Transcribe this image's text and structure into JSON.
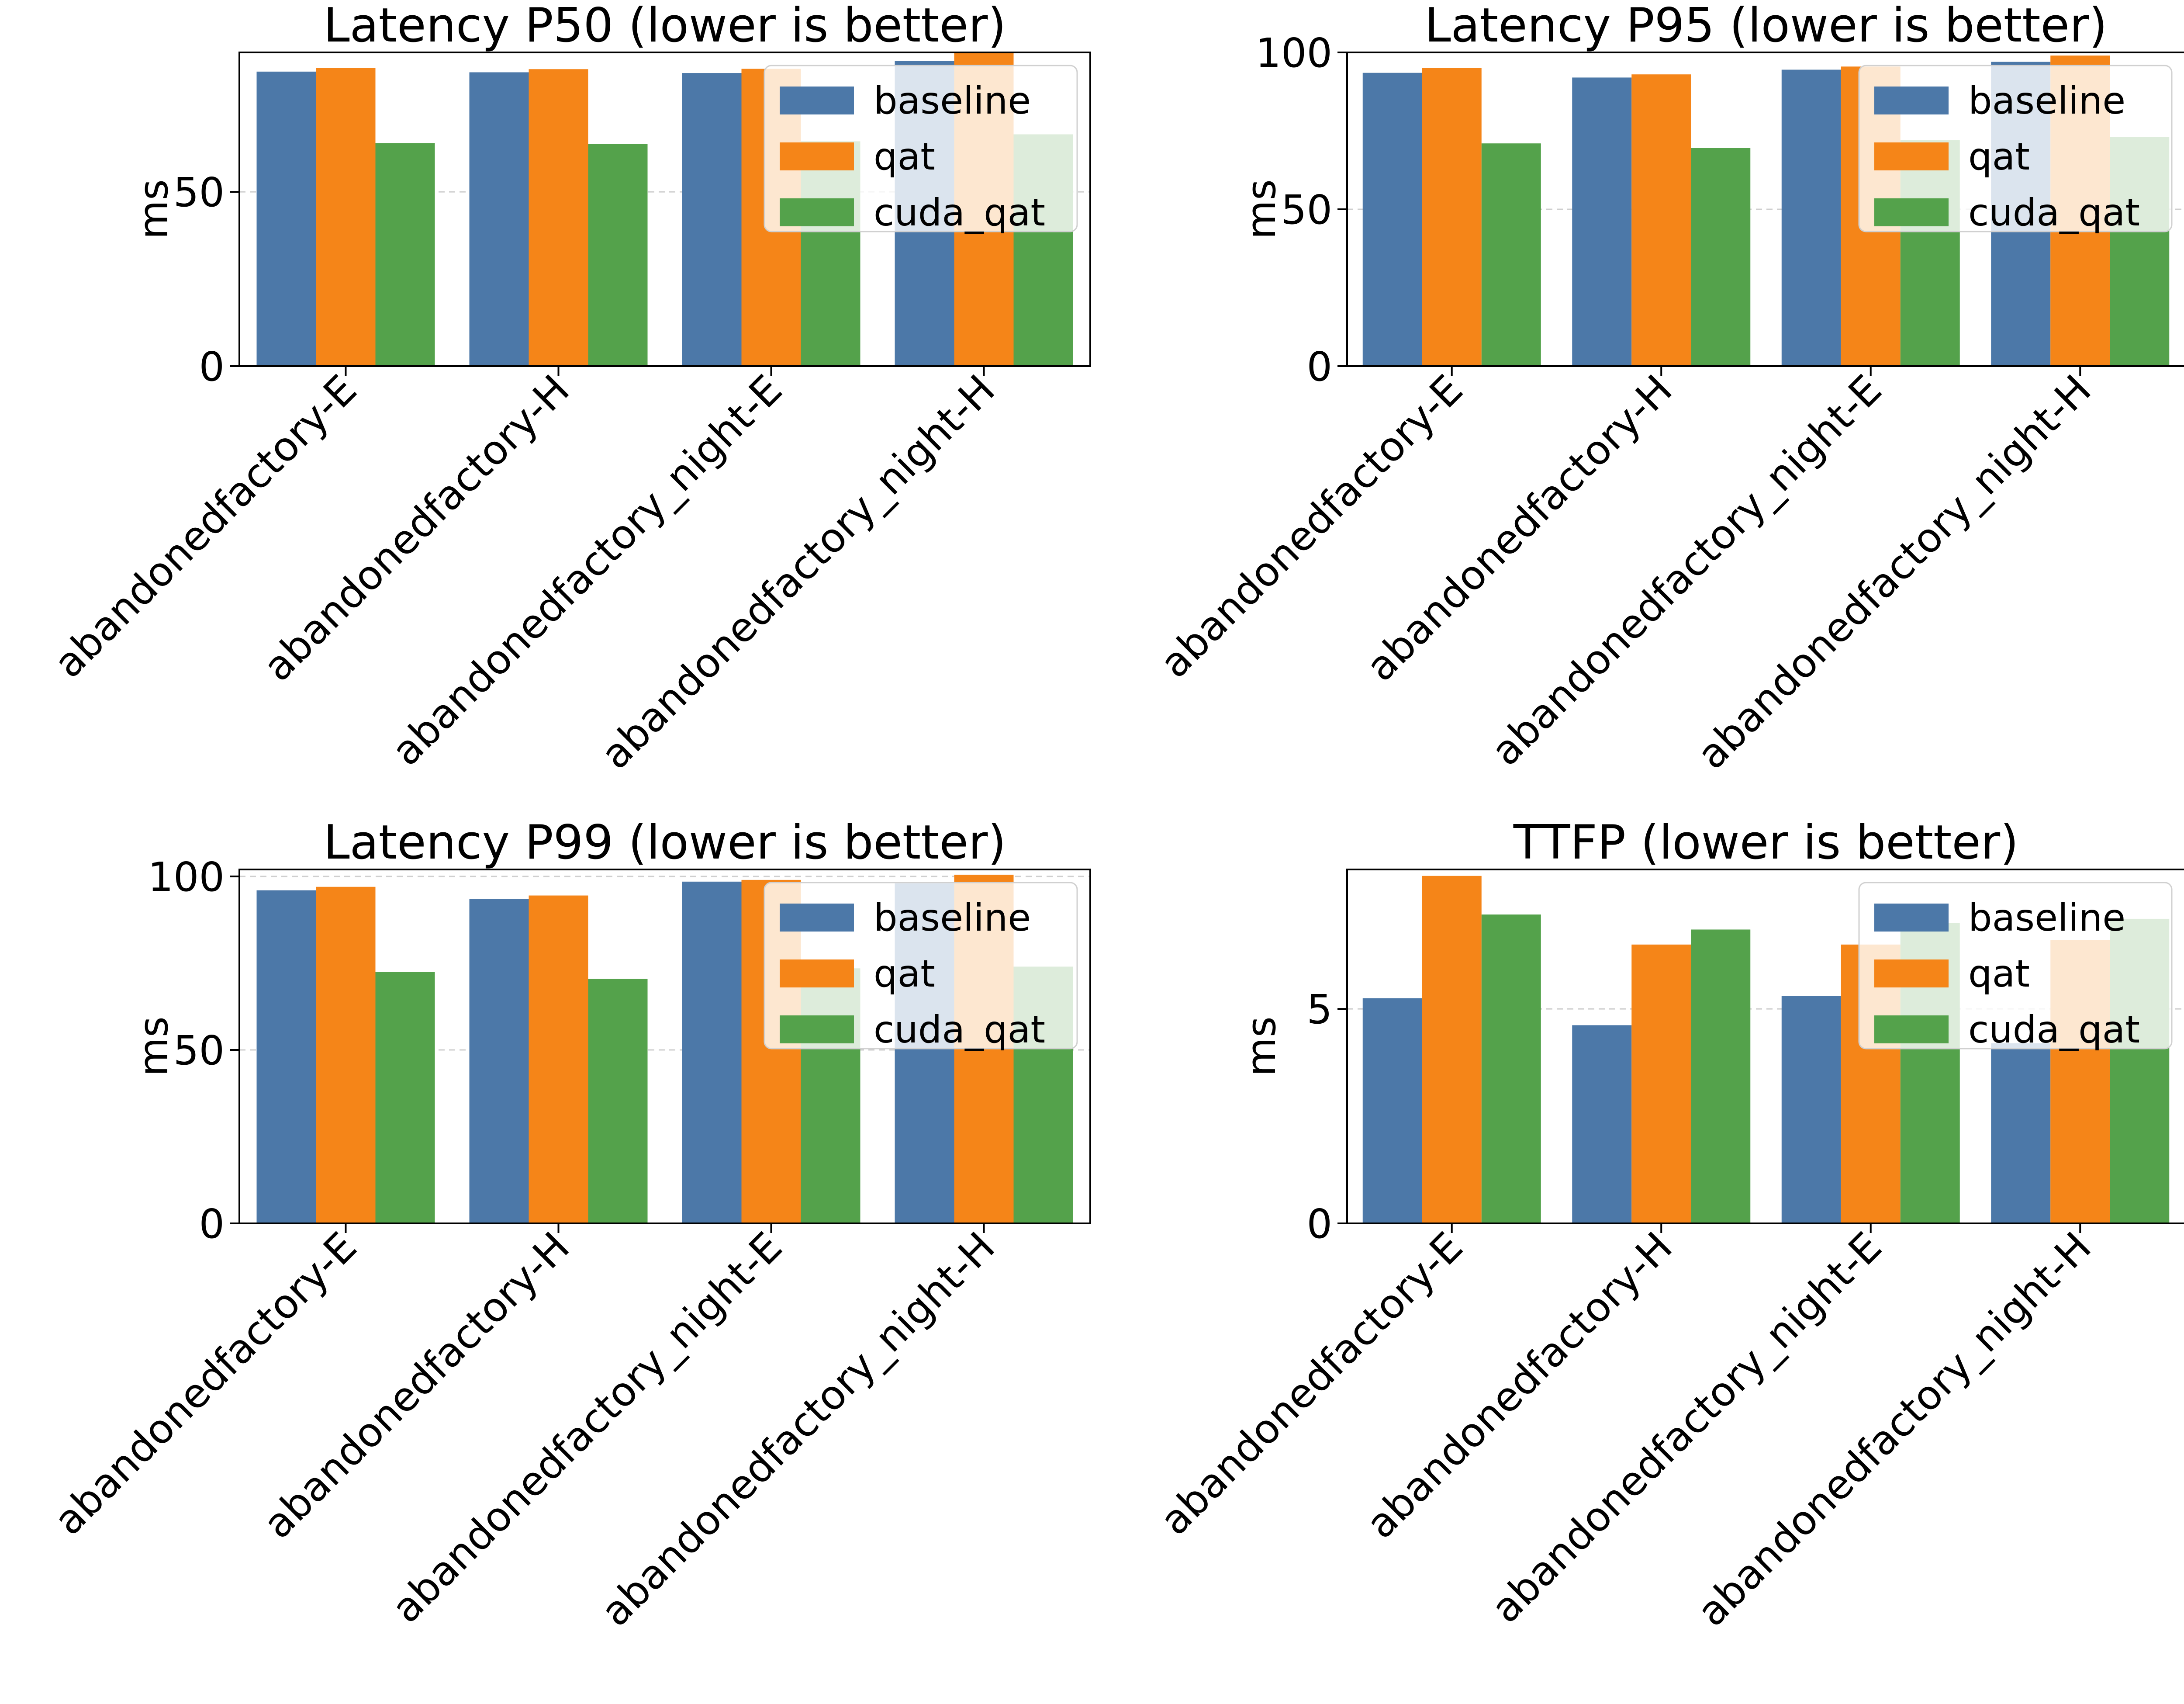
{
  "figure": {
    "colors": {
      "baseline": "#4c78a8",
      "qat": "#f58518",
      "cuda_qat": "#54a24b"
    }
  },
  "chart_data": [
    {
      "type": "bar",
      "title": "Latency P50 (lower is better)",
      "xlabel": "",
      "ylabel": "ms",
      "categories": [
        "abandonedfactory-E",
        "abandonedfactory-H",
        "abandonedfactory_night-E",
        "abandonedfactory_night-H"
      ],
      "series": [
        {
          "name": "baseline",
          "values": [
            84.5,
            84.3,
            84.1,
            87.5
          ]
        },
        {
          "name": "qat",
          "values": [
            85.5,
            85.2,
            85.3,
            90.0
          ]
        },
        {
          "name": "cuda_qat",
          "values": [
            64.0,
            63.8,
            64.5,
            66.5
          ]
        }
      ],
      "ylim": [
        0,
        90
      ],
      "yticks": [
        0,
        50
      ],
      "grid": "y-dashed",
      "legend": "upper right"
    },
    {
      "type": "bar",
      "title": "Latency P95 (lower is better)",
      "xlabel": "",
      "ylabel": "ms",
      "categories": [
        "abandonedfactory-E",
        "abandonedfactory-H",
        "abandonedfactory_night-E",
        "abandonedfactory_night-H"
      ],
      "series": [
        {
          "name": "baseline",
          "values": [
            93.5,
            92.0,
            94.5,
            97.0
          ]
        },
        {
          "name": "qat",
          "values": [
            95.0,
            93.0,
            95.5,
            99.0
          ]
        },
        {
          "name": "cuda_qat",
          "values": [
            71.0,
            69.5,
            72.0,
            73.0
          ]
        }
      ],
      "ylim": [
        0,
        100
      ],
      "yticks": [
        0,
        50,
        100
      ],
      "grid": "y-dashed",
      "legend": "upper right"
    },
    {
      "type": "bar",
      "title": "Latency P99 (lower is better)",
      "xlabel": "",
      "ylabel": "ms",
      "categories": [
        "abandonedfactory-E",
        "abandonedfactory-H",
        "abandonedfactory_night-E",
        "abandonedfactory_night-H"
      ],
      "series": [
        {
          "name": "baseline",
          "values": [
            96.0,
            93.5,
            98.5,
            98.0
          ]
        },
        {
          "name": "qat",
          "values": [
            97.0,
            94.5,
            99.0,
            100.5
          ]
        },
        {
          "name": "cuda_qat",
          "values": [
            72.5,
            70.5,
            73.5,
            74.0
          ]
        }
      ],
      "ylim": [
        0,
        102
      ],
      "yticks": [
        0,
        50,
        100
      ],
      "grid": "y-dashed",
      "legend": "upper right"
    },
    {
      "type": "bar",
      "title": "TTFP (lower is better)",
      "xlabel": "",
      "ylabel": "ms",
      "categories": [
        "abandonedfactory-E",
        "abandonedfactory-H",
        "abandonedfactory_night-E",
        "abandonedfactory_night-H"
      ],
      "series": [
        {
          "name": "baseline",
          "values": [
            5.25,
            4.62,
            5.3,
            4.2
          ]
        },
        {
          "name": "qat",
          "values": [
            8.1,
            6.5,
            6.5,
            6.6
          ]
        },
        {
          "name": "cuda_qat",
          "values": [
            7.2,
            6.85,
            7.0,
            7.1
          ]
        }
      ],
      "ylim": [
        0,
        8.25
      ],
      "yticks": [
        0,
        5
      ],
      "grid": "y-dashed",
      "legend": "upper right"
    }
  ]
}
